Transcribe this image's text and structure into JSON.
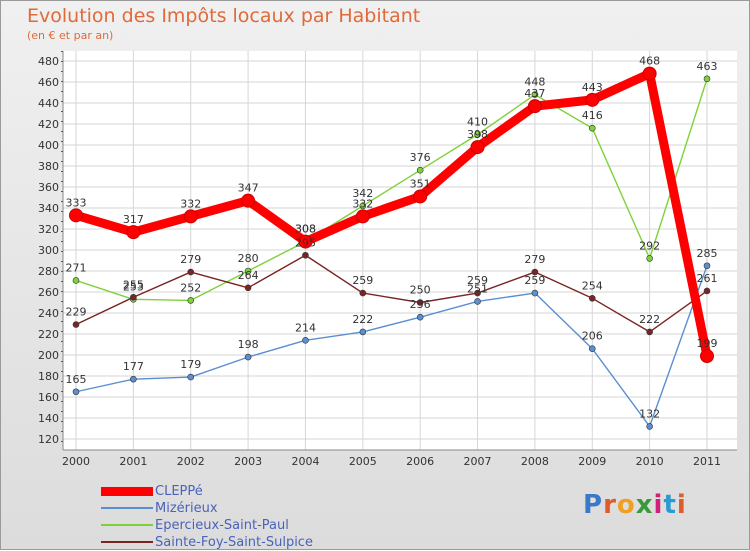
{
  "title": "Evolution des Impôts locaux par Habitant",
  "subtitle": "(en € et par an)",
  "logo": "Proxiti",
  "chart_data": {
    "type": "line",
    "title": "Evolution des Impôts locaux par Habitant",
    "subtitle": "(en € et par an)",
    "xlabel": "",
    "ylabel": "",
    "x": [
      "2000",
      "2001",
      "2002",
      "2003",
      "2004",
      "2005",
      "2006",
      "2007",
      "2008",
      "2009",
      "2010",
      "2011"
    ],
    "ylim": [
      120,
      480
    ],
    "yticks": [
      120,
      140,
      160,
      180,
      200,
      220,
      240,
      260,
      280,
      300,
      320,
      340,
      360,
      380,
      400,
      420,
      440,
      460,
      480
    ],
    "grid": true,
    "legend_position": "bottom-left",
    "series": [
      {
        "name": "CLEPPé",
        "color": "#ff0000",
        "values": [
          333,
          317,
          332,
          347,
          308,
          332,
          351,
          398,
          437,
          443,
          468,
          199
        ],
        "labels": [
          "333",
          "317",
          "332",
          "347",
          "308",
          "332",
          "351",
          "398",
          "437",
          "443",
          "468",
          "199"
        ]
      },
      {
        "name": "Mizérieux",
        "color": "#5b8fd0",
        "values": [
          165,
          177,
          179,
          198,
          214,
          222,
          236,
          251,
          259,
          206,
          132,
          285
        ],
        "labels": [
          "165",
          "177",
          "179",
          "198",
          "214",
          "222",
          "236",
          "251",
          "259",
          "206",
          "132",
          "285"
        ]
      },
      {
        "name": "Epercieux-Saint-Paul",
        "color": "#7ed13a",
        "values": [
          271,
          253,
          252,
          280,
          308,
          342,
          376,
          410,
          448,
          416,
          292,
          463
        ],
        "labels": [
          "271",
          "253",
          "252",
          "280",
          "308",
          "342",
          "376",
          "410",
          "448",
          "416",
          "292",
          "463"
        ]
      },
      {
        "name": "Sainte-Foy-Saint-Sulpice",
        "color": "#7a2424",
        "values": [
          229,
          255,
          279,
          264,
          295,
          259,
          250,
          259,
          279,
          254,
          222,
          261
        ],
        "labels": [
          "229",
          "255",
          "279",
          "264",
          "295",
          "259",
          "250",
          "259",
          "279",
          "254",
          "222",
          "261"
        ]
      }
    ]
  }
}
